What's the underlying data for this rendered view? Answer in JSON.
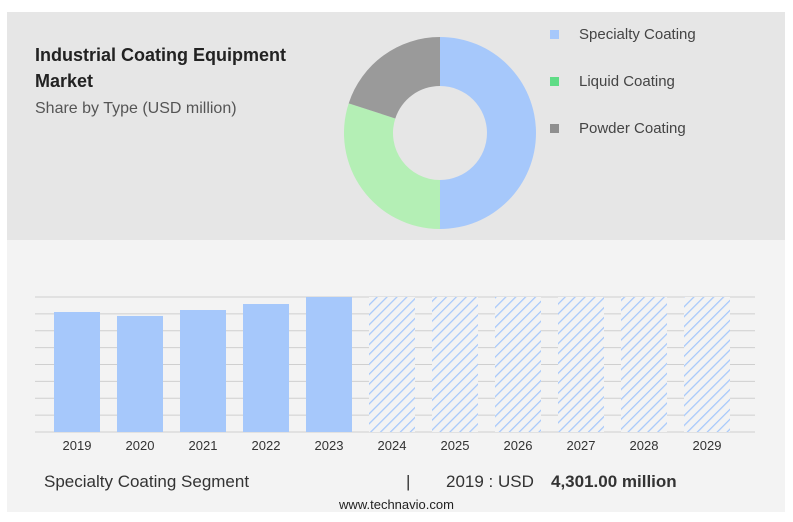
{
  "title": "Industrial Coating Equipment Market",
  "subtitle": "Share by Type (USD million)",
  "colors": {
    "specialty": "#a6c8fb",
    "liquid": "#b4efb5",
    "powder": "#9a9a9a",
    "bar": "#a6c8fb"
  },
  "footer": {
    "segment": "Specialty Coating Segment",
    "separator": "|",
    "year_label": "2019 : USD",
    "value": "4,301.00 million"
  },
  "source": "www.technavio.com",
  "chart_data": [
    {
      "type": "pie",
      "donut": true,
      "labels": [
        "Specialty Coating",
        "Liquid Coating",
        "Powder Coating"
      ],
      "values": [
        50,
        30,
        20
      ],
      "legend": "right"
    },
    {
      "type": "bar",
      "categories": [
        "2019",
        "2020",
        "2021",
        "2022",
        "2023",
        "2024",
        "2025",
        "2026",
        "2027",
        "2028",
        "2029"
      ],
      "values": [
        4301,
        4159,
        4373,
        4588,
        4839,
        null,
        null,
        null,
        null,
        null,
        null
      ],
      "forecast": [
        "2024",
        "2025",
        "2026",
        "2027",
        "2028",
        "2029"
      ],
      "ylabel": "",
      "xlabel": "",
      "ylim": [
        0,
        4839
      ],
      "grid": true
    }
  ]
}
